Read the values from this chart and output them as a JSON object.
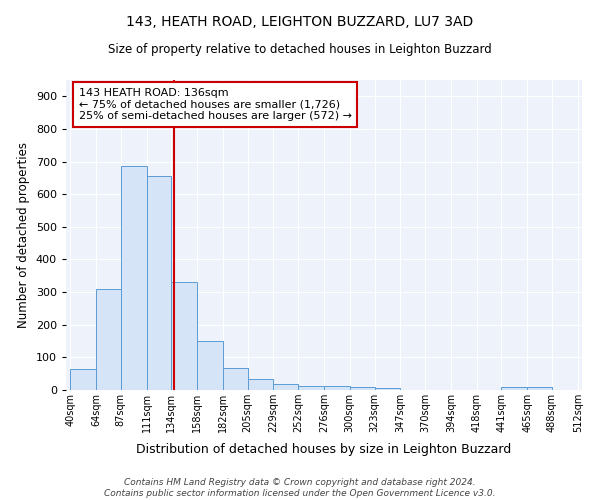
{
  "title1": "143, HEATH ROAD, LEIGHTON BUZZARD, LU7 3AD",
  "title2": "Size of property relative to detached houses in Leighton Buzzard",
  "xlabel": "Distribution of detached houses by size in Leighton Buzzard",
  "ylabel": "Number of detached properties",
  "bar_edges": [
    40,
    64,
    87,
    111,
    134,
    158,
    182,
    205,
    229,
    252,
    276,
    300,
    323,
    347,
    370,
    394,
    418,
    441,
    465,
    488,
    512
  ],
  "bar_heights": [
    65,
    310,
    685,
    655,
    330,
    150,
    68,
    35,
    18,
    11,
    11,
    8,
    7,
    0,
    0,
    0,
    0,
    10,
    10,
    0
  ],
  "bar_facecolor": "#d6e4f7",
  "bar_edgecolor": "#5b9bd5",
  "vline_x": 136,
  "vline_color": "#cc0000",
  "ylim": [
    0,
    950
  ],
  "yticks": [
    0,
    100,
    200,
    300,
    400,
    500,
    600,
    700,
    800,
    900
  ],
  "annotation_text": "143 HEATH ROAD: 136sqm\n← 75% of detached houses are smaller (1,726)\n25% of semi-detached houses are larger (572) →",
  "annotation_box_color": "#ffffff",
  "annotation_border_color": "#cc0000",
  "footer_text": "Contains HM Land Registry data © Crown copyright and database right 2024.\nContains public sector information licensed under the Open Government Licence v3.0.",
  "background_color": "#eef2fa",
  "grid_color": "#ffffff",
  "tick_labels": [
    "40sqm",
    "64sqm",
    "87sqm",
    "111sqm",
    "134sqm",
    "158sqm",
    "182sqm",
    "205sqm",
    "229sqm",
    "252sqm",
    "276sqm",
    "300sqm",
    "323sqm",
    "347sqm",
    "370sqm",
    "394sqm",
    "418sqm",
    "441sqm",
    "465sqm",
    "488sqm",
    "512sqm"
  ]
}
